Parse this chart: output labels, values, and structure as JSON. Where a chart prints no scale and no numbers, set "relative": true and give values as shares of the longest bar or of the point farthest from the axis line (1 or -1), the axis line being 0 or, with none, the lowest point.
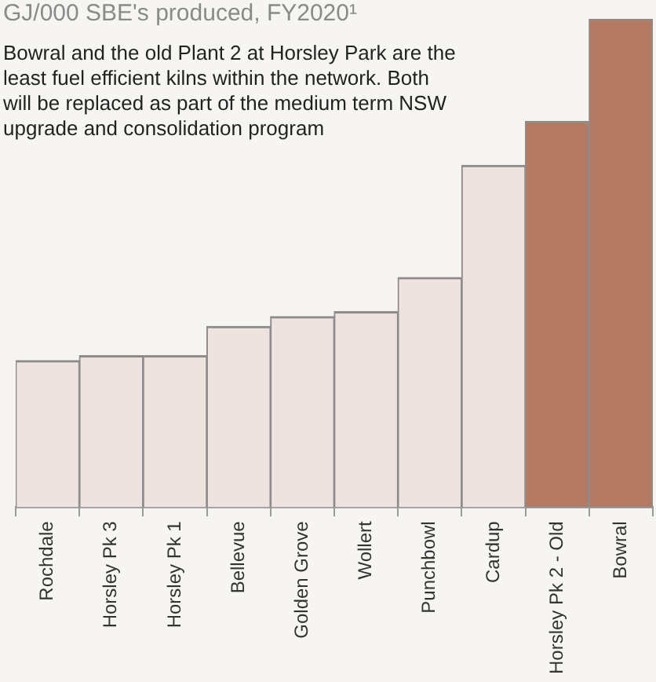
{
  "chart_data": {
    "type": "bar",
    "title": "GJ/000 SBE's produced, FY2020¹",
    "annotations": [
      "Bowral and the old Plant 2 at Horsley Park are the least fuel efficient kilns within the network. Both will be replaced as part of the medium term NSW upgrade and consolidation program"
    ],
    "categories": [
      "Rochdale",
      "Horsley Pk 3",
      "Horsley Pk 1",
      "Bellevue",
      "Golden Grove",
      "Wollert",
      "Punchbowl",
      "Cardup",
      "Horsley Pk 2 - Old",
      "Bowral"
    ],
    "values": [
      0.3,
      0.31,
      0.31,
      0.37,
      0.39,
      0.4,
      0.47,
      0.7,
      0.79,
      1
    ],
    "colors": [
      "#efe3df",
      "#efe3df",
      "#efe3df",
      "#efe3df",
      "#efe3df",
      "#efe3df",
      "#efe3df",
      "#efe3df",
      "#b57a64",
      "#b57a64"
    ],
    "relative": true,
    "grid": false,
    "legend": false
  }
}
